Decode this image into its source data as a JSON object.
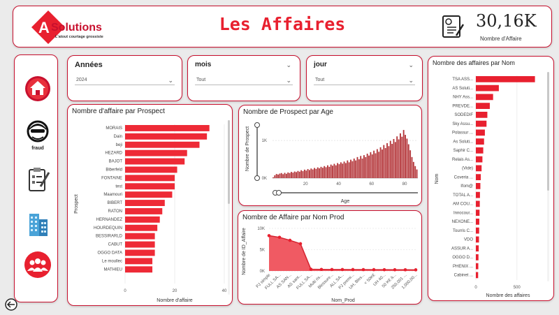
{
  "header": {
    "logo_text_a": "A",
    "logo_text_solutions": "Solutions",
    "logo_tagline": "L'atout courtage grossiste",
    "title": "Les Affaires",
    "kpi_value": "30,16K",
    "kpi_label": "Nombre d'Affaire"
  },
  "nav": {
    "fraud_label": "fraud"
  },
  "slicers": {
    "annees": {
      "title": "Années",
      "value": "2024"
    },
    "mois": {
      "title": "mois",
      "value": "Tout"
    },
    "jour": {
      "title": "jour",
      "value": "Tout"
    }
  },
  "colors": {
    "accent": "#e8202f",
    "border": "#c8102e",
    "bar": "#ee2a36",
    "age_bar": "#b5383c",
    "area": "#f05a63"
  },
  "chart_data": [
    {
      "type": "bar",
      "title": "Nombre d'affaire par Prospect",
      "xlabel": "Nombre d'affaire",
      "ylabel": "Prospect",
      "categories": [
        "MORAIS",
        "Dain",
        "beji",
        "HEZARD",
        "BAJOT",
        "Biberfeld",
        "FONTAINE",
        "test",
        "Maamouri",
        "BIBERT",
        "RATON",
        "HERNANDEZ",
        "HOURDEQUIN",
        "BESSIRARLD",
        "CABUT",
        "OGGO DATA",
        "Le moullec",
        "MATHIEU"
      ],
      "values": [
        34,
        33,
        30,
        25,
        24,
        21,
        20,
        20,
        19,
        16,
        15,
        14,
        13,
        12,
        12,
        12,
        11,
        11
      ],
      "xlim": [
        0,
        40
      ],
      "xticks": [
        "0",
        "20",
        "40"
      ]
    },
    {
      "type": "bar",
      "title": "Nombre de Prospect par Age",
      "xlabel": "Age",
      "ylabel": "Nombre de Prospect",
      "x_range": [
        0,
        88
      ],
      "values": [
        20,
        75,
        110,
        95,
        120,
        135,
        105,
        140,
        115,
        150,
        135,
        165,
        145,
        175,
        160,
        190,
        170,
        210,
        185,
        225,
        200,
        240,
        215,
        255,
        230,
        270,
        245,
        285,
        260,
        300,
        275,
        320,
        290,
        340,
        300,
        360,
        330,
        380,
        340,
        400,
        370,
        420,
        385,
        440,
        400,
        470,
        420,
        490,
        450,
        520,
        470,
        560,
        500,
        590,
        520,
        610,
        560,
        650,
        600,
        690,
        630,
        730,
        660,
        770,
        700,
        820,
        760,
        880,
        800,
        930,
        850,
        990,
        910,
        1040,
        960,
        1110,
        1030,
        1190,
        1100,
        1280,
        1150,
        1050,
        900,
        740,
        560,
        430,
        320,
        230
      ],
      "ylim": [
        0,
        1300
      ],
      "yticks": [
        "0K",
        "1K"
      ],
      "xticks": [
        "20",
        "40",
        "60",
        "80"
      ]
    },
    {
      "type": "area",
      "title": "Nombre de Affaire par Nom Prod",
      "xlabel": "Nom_Prod",
      "ylabel": "Nombre de ID_Affaire",
      "categories": [
        "PJ simple",
        "FULL SA...",
        "AS SAN...",
        "AS sant...",
        "FULL SA...",
        "Multi ris...",
        "Blessure...",
        "ALL SA...",
        "PJ premi...",
        "UH, Bles...",
        "< 50K€",
        "UH 40...",
        "50 K€ à...",
        "250,001 ...",
        "1,000,00..."
      ],
      "values": [
        8300,
        7900,
        7200,
        6400,
        400,
        370,
        350,
        340,
        330,
        320,
        310,
        300,
        290,
        280,
        270
      ],
      "ylim": [
        0,
        10000
      ],
      "yticks": [
        "0K",
        "5K",
        "10K"
      ]
    },
    {
      "type": "bar",
      "title": "Nombre des affaires par Nom",
      "xlabel": "Nombre des affaires",
      "ylabel": "Nom",
      "categories": [
        "TSA ASS...",
        "AS Soluti...",
        "NHY Ass...",
        "PREVDE...",
        "SODEDIF",
        "Sky Assu...",
        "Polassur ...",
        "As Soluti...",
        "Saphir C...",
        "Relais As...",
        "(Vide)",
        "Coveria ...",
        "Ifom@",
        "TOTAL A...",
        "AM COU...",
        "Innocour...",
        "NEXONE...",
        "Tourris C...",
        "VDO",
        "ASSUR A...",
        "OGGO D...",
        "PHENIX ...",
        "Cabinet ..."
      ],
      "values": [
        720,
        280,
        210,
        170,
        140,
        130,
        110,
        100,
        90,
        80,
        70,
        60,
        55,
        50,
        48,
        45,
        42,
        40,
        38,
        35,
        32,
        30,
        28
      ],
      "xlim": [
        0,
        800
      ],
      "xticks": [
        "0",
        "500"
      ]
    }
  ]
}
